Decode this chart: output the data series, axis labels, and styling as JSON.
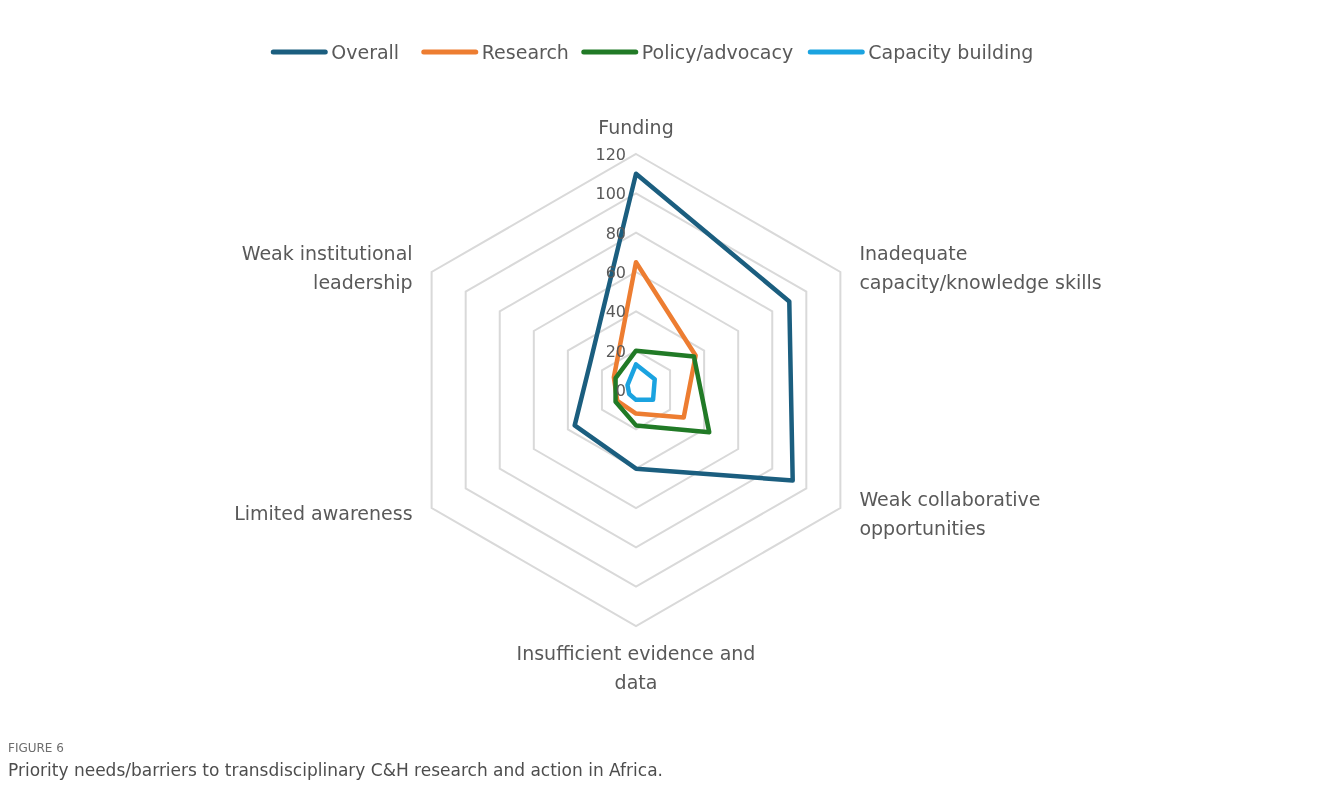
{
  "chart_data": {
    "type": "radar",
    "categories": [
      "Funding",
      "Inadequate capacity/knowledge skills",
      "Weak collaborative opportunities",
      "Insufficient evidence and data",
      "Limited awareness",
      "Weak institutional leadership"
    ],
    "series": [
      {
        "name": "Overall",
        "color": "#1b5e7f",
        "values": [
          110,
          90,
          92,
          40,
          36,
          27
        ]
      },
      {
        "name": "Research",
        "color": "#ed7d31",
        "values": [
          65,
          35,
          28,
          12,
          11,
          13
        ]
      },
      {
        "name": "Policy/advocacy",
        "color": "#217a26",
        "values": [
          20,
          34,
          43,
          18,
          12,
          12
        ]
      },
      {
        "name": "Capacity building",
        "color": "#1ba3e0",
        "values": [
          13,
          11,
          10,
          5,
          4,
          5
        ]
      }
    ],
    "ylim": [
      0,
      120
    ],
    "yticks": [
      0,
      20,
      40,
      60,
      80,
      100,
      120
    ],
    "grid": true,
    "legend": "top",
    "marker": "none",
    "annotations": [
      "FIGURE 6",
      "Priority needs/barriers to transdisciplinary C&H research and action in Africa."
    ]
  }
}
